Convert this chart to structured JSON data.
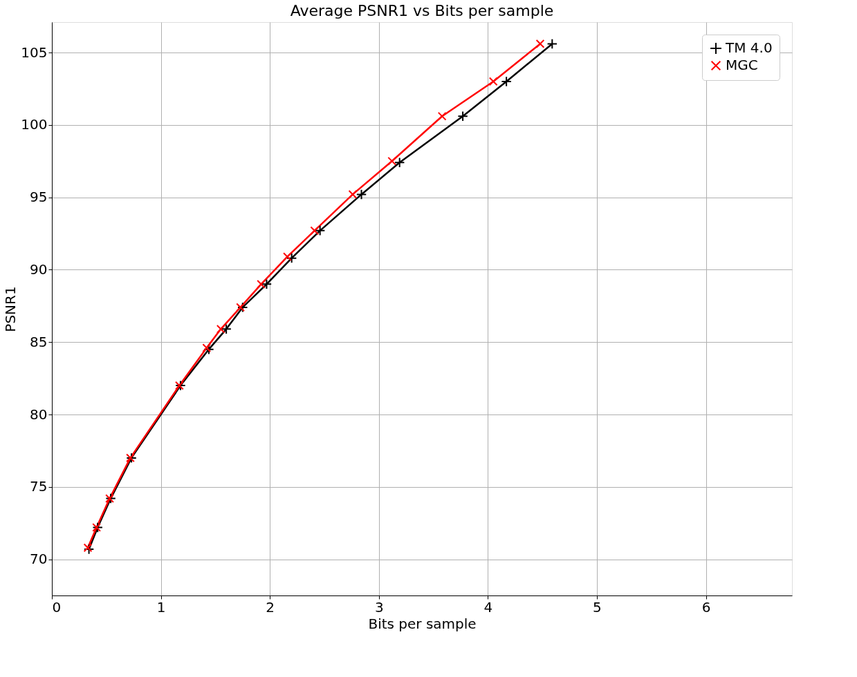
{
  "chart_data": {
    "type": "line",
    "title": "Average PSNR1 vs Bits per sample",
    "xlabel": "Bits per sample",
    "ylabel": "PSNR1",
    "xlim": [
      0,
      6.79
    ],
    "ylim": [
      67.5,
      107.1
    ],
    "xticks": [
      0,
      1,
      2,
      3,
      4,
      5,
      6
    ],
    "yticks": [
      70,
      75,
      80,
      85,
      90,
      95,
      100,
      105
    ],
    "grid": true,
    "legend": "top right",
    "line_style": "solid",
    "series": [
      {
        "name": "TM 4.0",
        "color": "#000000",
        "marker": "cross",
        "x": [
          0.34,
          0.42,
          0.54,
          0.73,
          1.18,
          1.44,
          1.6,
          1.75,
          1.97,
          2.2,
          2.46,
          2.84,
          3.19,
          3.77,
          4.17,
          4.59
        ],
        "values": [
          70.7,
          72.2,
          74.2,
          77.0,
          82.0,
          84.5,
          85.9,
          87.4,
          89.0,
          90.8,
          92.7,
          95.2,
          97.4,
          100.6,
          103.0,
          105.6
        ]
      },
      {
        "name": "MGC",
        "color": "#ff0000",
        "marker": "x",
        "x": [
          0.33,
          0.41,
          0.53,
          0.72,
          1.17,
          1.42,
          1.55,
          1.73,
          1.92,
          2.16,
          2.41,
          2.76,
          3.12,
          3.58,
          4.05,
          4.48
        ],
        "values": [
          70.8,
          72.2,
          74.2,
          77.0,
          82.0,
          84.6,
          85.9,
          87.4,
          89.0,
          90.9,
          92.7,
          95.2,
          97.5,
          100.6,
          103.0,
          105.6
        ]
      }
    ]
  }
}
